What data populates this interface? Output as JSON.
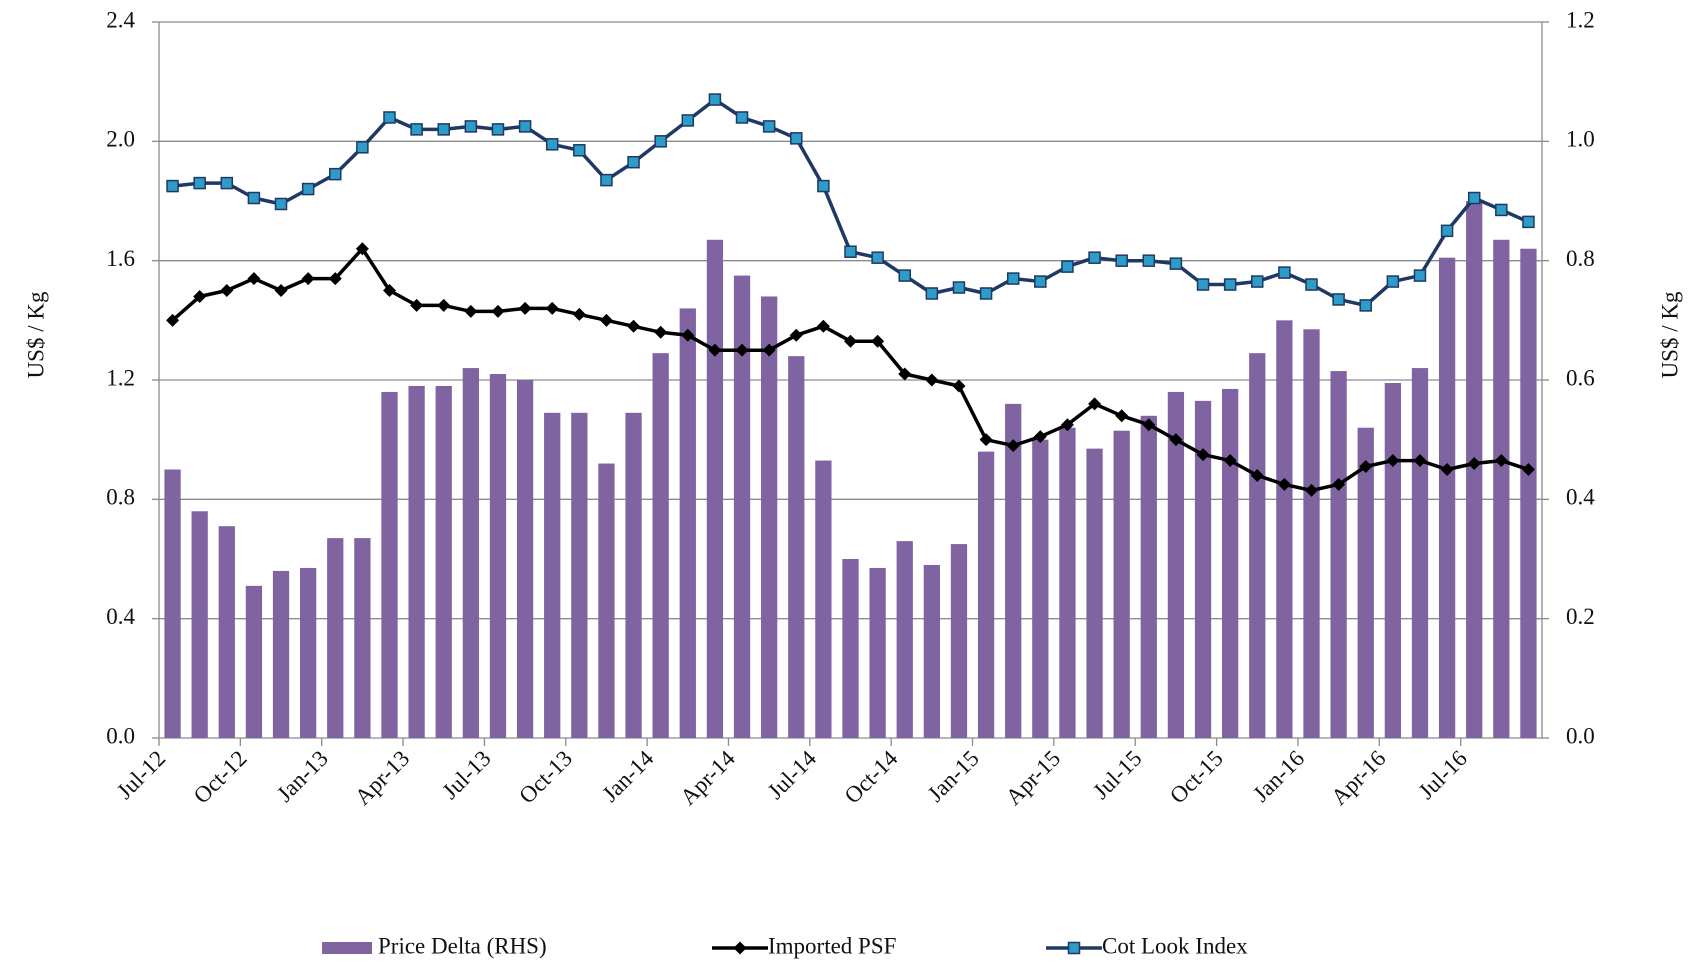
{
  "chart_data": {
    "type": "bar",
    "y_label": "US$ / Kg",
    "y2_label": "US$ / Kg",
    "categories": [
      "Jul-12",
      null,
      null,
      "Oct-12",
      null,
      null,
      "Jan-13",
      null,
      null,
      "Apr-13",
      null,
      null,
      "Jul-13",
      null,
      null,
      "Oct-13",
      null,
      null,
      "Jan-14",
      null,
      null,
      "Apr-14",
      null,
      null,
      "Jul-14",
      null,
      null,
      "Oct-14",
      null,
      null,
      "Jan-15",
      null,
      null,
      "Apr-15",
      null,
      null,
      "Jul-15",
      null,
      null,
      "Oct-15",
      null,
      null,
      "Jan-16",
      null,
      null,
      "Apr-16",
      null,
      null,
      "Jul-16",
      null,
      null
    ],
    "ylim": [
      0,
      2.4
    ],
    "yticks": [
      {
        "value": 0,
        "label": "0.0"
      },
      0.4,
      0.8,
      1.2,
      1.6,
      {
        "value": 2,
        "label": "2.0"
      },
      2.4
    ],
    "y2lim": [
      0,
      1.2
    ],
    "y2ticks": [
      {
        "value": 0,
        "label": "0.0"
      },
      0.2,
      0.4,
      0.6,
      0.8,
      {
        "value": 1,
        "label": "1.0"
      },
      1.2
    ],
    "grid": true,
    "legend": "bottom",
    "series": [
      {
        "name": "Price Delta (RHS)",
        "type": "bar",
        "axis": "y2",
        "color": "#8064a2",
        "values": [
          0.45,
          0.38,
          0.355,
          0.255,
          0.28,
          0.285,
          0.335,
          0.335,
          0.58,
          0.59,
          0.59,
          0.62,
          0.61,
          0.6,
          0.545,
          0.545,
          0.46,
          0.545,
          0.645,
          0.72,
          0.835,
          0.775,
          0.74,
          0.64,
          0.465,
          0.3,
          0.285,
          0.33,
          0.29,
          0.325,
          0.48,
          0.56,
          0.5,
          0.52,
          0.485,
          0.515,
          0.54,
          0.58,
          0.565,
          0.585,
          0.645,
          0.7,
          0.685,
          0.615,
          0.52,
          0.595,
          0.62,
          0.805,
          0.9,
          0.835,
          0.82
        ]
      },
      {
        "name": "Imported PSF",
        "type": "line",
        "color": "#000000",
        "marker": "diamond",
        "marker_color": "#000000",
        "values": [
          1.4,
          1.48,
          1.5,
          1.54,
          1.5,
          1.54,
          1.54,
          1.64,
          1.5,
          1.45,
          1.45,
          1.43,
          1.43,
          1.44,
          1.44,
          1.42,
          1.4,
          1.38,
          1.36,
          1.35,
          1.3,
          1.3,
          1.3,
          1.35,
          1.38,
          1.33,
          1.33,
          1.22,
          1.2,
          1.18,
          1.0,
          0.98,
          1.01,
          1.05,
          1.12,
          1.08,
          1.05,
          1.0,
          0.95,
          0.93,
          0.88,
          0.85,
          0.83,
          0.85,
          0.91,
          0.93,
          0.93,
          0.9,
          0.92,
          0.93,
          0.9
        ]
      },
      {
        "name": "Cot Look Index",
        "type": "line",
        "color": "#1f3864",
        "marker": "square",
        "marker_color": "#2e9cc8",
        "values": [
          1.85,
          1.86,
          1.86,
          1.81,
          1.79,
          1.84,
          1.89,
          1.98,
          2.08,
          2.04,
          2.04,
          2.05,
          2.04,
          2.05,
          1.99,
          1.97,
          1.87,
          1.93,
          2.0,
          2.07,
          2.14,
          2.08,
          2.05,
          2.01,
          1.85,
          1.63,
          1.61,
          1.55,
          1.49,
          1.51,
          1.49,
          1.54,
          1.53,
          1.58,
          1.61,
          1.6,
          1.6,
          1.59,
          1.52,
          1.52,
          1.53,
          1.56,
          1.52,
          1.47,
          1.45,
          1.53,
          1.55,
          1.7,
          1.81,
          1.77,
          1.73
        ]
      }
    ]
  }
}
